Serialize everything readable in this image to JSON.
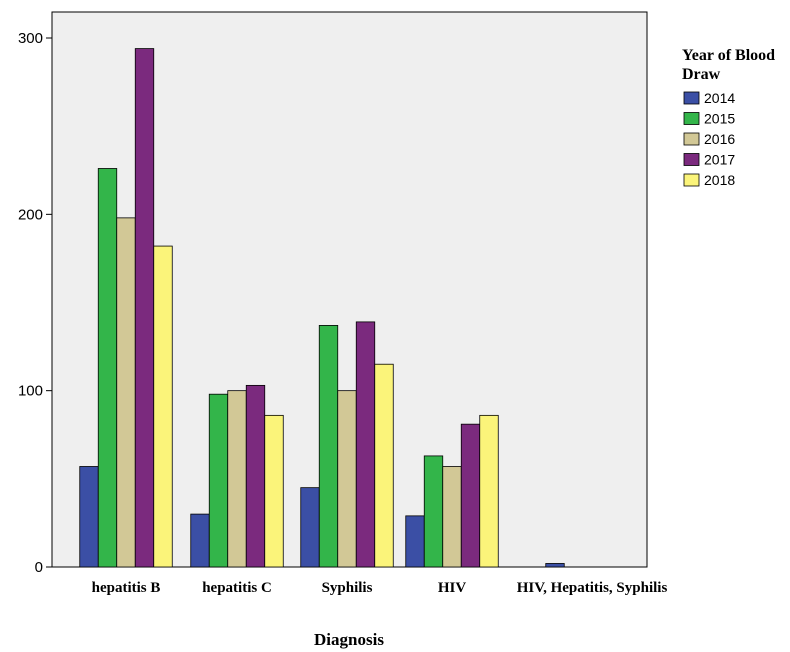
{
  "chart_data": {
    "type": "bar",
    "xlabel": "Diagnosis",
    "ylabel": "",
    "ylim": [
      0,
      300
    ],
    "yticks": [
      0,
      100,
      200,
      300
    ],
    "grid": false,
    "legend_title": "Year of Blood Draw",
    "legend_position": "right",
    "categories": [
      "hepatitis B",
      "hepatitis C",
      "Syphilis",
      "HIV",
      "HIV, Hepatitis, Syphilis"
    ],
    "series": [
      {
        "name": "2014",
        "color": "#3b4fa5",
        "values": [
          57,
          30,
          45,
          29,
          2
        ]
      },
      {
        "name": "2015",
        "color": "#33b54a",
        "values": [
          226,
          98,
          137,
          63,
          0
        ]
      },
      {
        "name": "2016",
        "color": "#d2c896",
        "values": [
          198,
          100,
          100,
          57,
          0
        ]
      },
      {
        "name": "2017",
        "color": "#7b2a7e",
        "values": [
          294,
          103,
          139,
          81,
          0
        ]
      },
      {
        "name": "2018",
        "color": "#fbf47a",
        "values": [
          182,
          86,
          115,
          86,
          0
        ]
      }
    ],
    "plot_background": "#efefef"
  }
}
